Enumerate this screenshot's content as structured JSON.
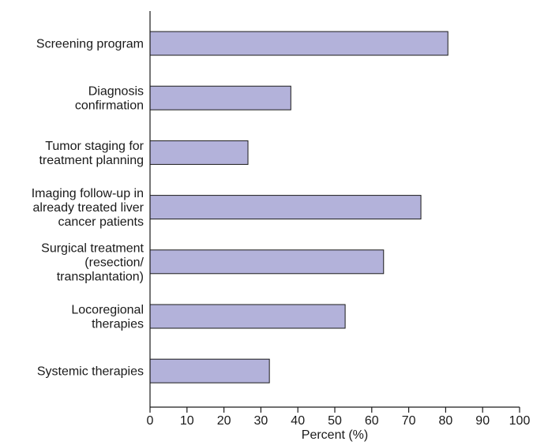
{
  "chart_data": {
    "type": "bar",
    "orientation": "horizontal",
    "categories": [
      [
        "Screening program"
      ],
      [
        "Diagnosis",
        "confirmation"
      ],
      [
        "Tumor staging for",
        "treatment planning"
      ],
      [
        "Imaging follow-up in",
        "already treated liver",
        "cancer patients"
      ],
      [
        "Surgical treatment",
        "(resection/",
        "transplantation)"
      ],
      [
        "Locoregional",
        "therapies"
      ],
      [
        "Systemic therapies"
      ]
    ],
    "values": [
      80.6,
      38.1,
      26.5,
      73.3,
      63.2,
      52.8,
      32.3
    ],
    "xlabel": "Percent (%)",
    "ylabel": "",
    "xlim": [
      0,
      100
    ],
    "xticks": [
      0,
      10,
      20,
      30,
      40,
      50,
      60,
      70,
      80,
      90,
      100
    ],
    "grid": false,
    "bar_color": "#b3b2da",
    "bar_edge_color": "#1a1a1a"
  }
}
